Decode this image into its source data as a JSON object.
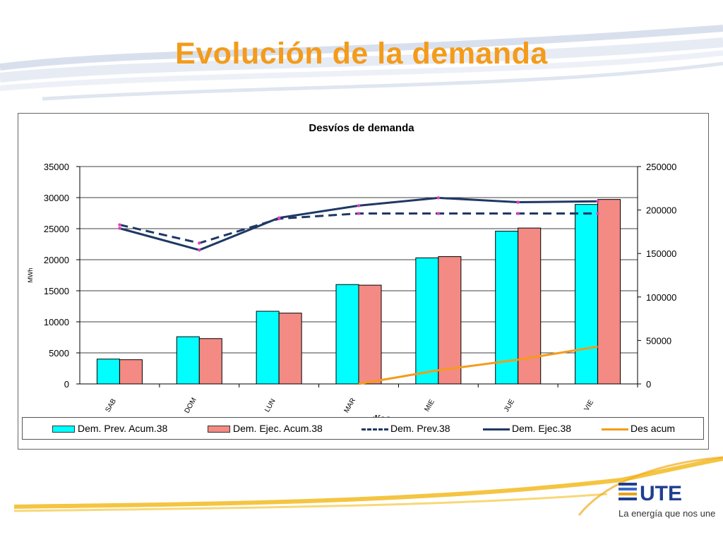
{
  "slide": {
    "title": "Evolución de la demanda",
    "brand_color": "#f49b1a"
  },
  "logo": {
    "text": "UTE",
    "tagline": "La energía que nos une"
  },
  "chart_data": {
    "type": "bar",
    "title": "Desvíos de demanda",
    "xlabel": "días",
    "ylabel": "MWh",
    "categories": [
      "SAB",
      "DOM",
      "LUN",
      "MAR",
      "MIE",
      "JUE",
      "VIE"
    ],
    "ylim_left": [
      0,
      35000
    ],
    "yticks_left": [
      "0",
      "5000",
      "10000",
      "15000",
      "20000",
      "25000",
      "30000",
      "35000"
    ],
    "ylim_right": [
      0,
      250000
    ],
    "yticks_right": [
      "0",
      "50000",
      "100000",
      "150000",
      "200000",
      "250000"
    ],
    "grid": true,
    "legend_position": "bottom",
    "series": [
      {
        "name": "Dem. Prev. Acum.38",
        "type": "bar",
        "axis": "left",
        "color": "#00ffff",
        "values": [
          4000,
          7600,
          11700,
          16000,
          20300,
          24600,
          28900
        ]
      },
      {
        "name": "Dem. Ejec. Acum.38",
        "type": "bar",
        "axis": "left",
        "color": "#f48a84",
        "values": [
          3900,
          7300,
          11400,
          15900,
          20500,
          25100,
          29700
        ]
      },
      {
        "name": "Dem. Prev.38",
        "type": "line",
        "style": "dashed",
        "axis": "right",
        "color": "#1f3864",
        "values": [
          183000,
          162000,
          190000,
          196000,
          196000,
          196000,
          196000
        ]
      },
      {
        "name": "Dem. Ejec.38",
        "type": "line",
        "style": "solid",
        "axis": "right",
        "color": "#1f3864",
        "values": [
          179000,
          154000,
          191000,
          205000,
          214000,
          209000,
          210000
        ]
      },
      {
        "name": "Des acum",
        "type": "line",
        "style": "solid",
        "axis": "left",
        "color": "#f49b1a",
        "values": [
          null,
          null,
          null,
          0,
          2200,
          3900,
          6000
        ]
      }
    ]
  }
}
